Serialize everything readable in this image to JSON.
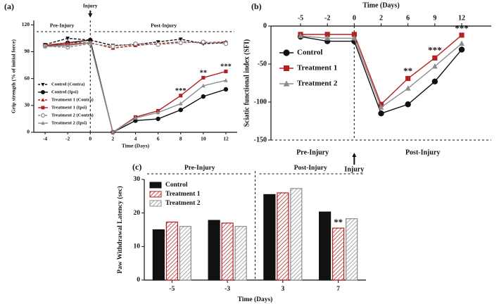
{
  "chart_data": [
    {
      "label": "(a)",
      "type": "line",
      "xlabel": "Time (Days)",
      "ylabel": "Grip strength (% of initial force)",
      "x": [
        -4,
        -2,
        0,
        2,
        4,
        6,
        8,
        10,
        12
      ],
      "xlim": [
        -5,
        13
      ],
      "xticks": [
        -4,
        -2,
        0,
        2,
        4,
        6,
        8,
        10,
        12
      ],
      "ylim": [
        0,
        125
      ],
      "yticks": [
        0,
        30,
        60,
        90,
        120
      ],
      "legend": "lower left",
      "regions": [
        "Pre-Injury",
        "Post-Injury"
      ],
      "injury": {
        "label": "Injury",
        "x": 0
      },
      "series": [
        {
          "name": "Control (Contra)",
          "color": "#111111",
          "dashed": true,
          "marker": "triangle-down",
          "values": [
            98,
            105,
            103,
            97,
            98,
            101,
            104,
            99,
            100
          ]
        },
        {
          "name": "Control (Ipsi)",
          "color": "#111111",
          "dashed": false,
          "marker": "circle",
          "values": [
            97,
            100,
            103,
            0,
            13,
            15,
            25,
            40,
            48
          ]
        },
        {
          "name": "Treatment 1 (Contra)",
          "color": "#b22222",
          "dashed": true,
          "marker": "triangle",
          "values": [
            97,
            100,
            100,
            94,
            97,
            99,
            101,
            100,
            101
          ]
        },
        {
          "name": "Treatment 1 (Ipsi)",
          "color": "#b22222",
          "dashed": false,
          "marker": "square",
          "values": [
            97,
            98,
            100,
            0,
            17,
            24,
            41,
            61,
            68
          ]
        },
        {
          "name": "Treatment 2 (Contra)",
          "color": "#8c8c8c",
          "dashed": true,
          "marker": "circle-open",
          "values": [
            96,
            95,
            99,
            96,
            99,
            98,
            100,
            101,
            99
          ]
        },
        {
          "name": "Treatment 2 (Ipsi)",
          "color": "#8c8c8c",
          "dashed": false,
          "marker": "triangle",
          "values": [
            96,
            97,
            100,
            0,
            16,
            22,
            32,
            52,
            58
          ]
        }
      ],
      "annotations": [
        {
          "text": "***",
          "x": 8,
          "y": 46
        },
        {
          "text": "**",
          "x": 10,
          "y": 66
        },
        {
          "text": "***",
          "x": 12,
          "y": 73
        }
      ]
    },
    {
      "label": "(b)",
      "type": "line",
      "xlabel": "Time (Days)",
      "ylabel": "Sciatic functional index (SFI)",
      "categories": [
        "-5",
        "-2",
        "0",
        "2",
        "6",
        "9",
        "12"
      ],
      "ylim": [
        -150,
        0
      ],
      "yticks": [
        0,
        -50,
        -100,
        -150
      ],
      "legend": "upper left",
      "regions": [
        "Pre-Injury",
        "Post-Injury"
      ],
      "injury": {
        "label": "Injury",
        "x": "0"
      },
      "series": [
        {
          "name": "Control",
          "color": "#111111",
          "marker": "circle",
          "values": [
            -14,
            -20,
            -20,
            -115,
            -103,
            -73,
            -31
          ]
        },
        {
          "name": "Treatment 1",
          "color": "#b22222",
          "marker": "square",
          "values": [
            -11,
            -11,
            -11,
            -103,
            -69,
            -42,
            -12
          ]
        },
        {
          "name": "Treatment 2",
          "color": "#8c8c8c",
          "marker": "triangle",
          "values": [
            -13,
            -16,
            -16,
            -107,
            -82,
            -53,
            -23
          ]
        }
      ],
      "annotations": [
        {
          "text": "**",
          "x": "6",
          "y": -60
        },
        {
          "text": "***",
          "x": "9",
          "y": -33
        },
        {
          "text": "***",
          "x": "12",
          "y": -4
        }
      ]
    },
    {
      "label": "(c)",
      "type": "bar",
      "xlabel": "Time (Days)",
      "ylabel": "Paw Withdrawal Latency (sec)",
      "categories": [
        "-5",
        "-3",
        "3",
        "7"
      ],
      "ylim": [
        0,
        30
      ],
      "yticks": [
        0,
        10,
        20,
        30
      ],
      "legend": "upper left",
      "regions": [
        "Pre-Injury",
        "Post-Injury"
      ],
      "series": [
        {
          "name": "Control",
          "color": "#111111",
          "pattern": "solid",
          "values": [
            15,
            17.8,
            25.5,
            20.3
          ]
        },
        {
          "name": "Treatment 1",
          "color": "#b22222",
          "pattern": "hatch",
          "values": [
            17.3,
            17,
            26,
            15.5
          ]
        },
        {
          "name": "Treatment 2",
          "color": "#8c8c8c",
          "pattern": "hatch",
          "values": [
            16,
            16,
            27.3,
            18.3
          ]
        }
      ],
      "annotations": [
        {
          "text": "**",
          "x": "7",
          "y": 17
        }
      ]
    }
  ]
}
